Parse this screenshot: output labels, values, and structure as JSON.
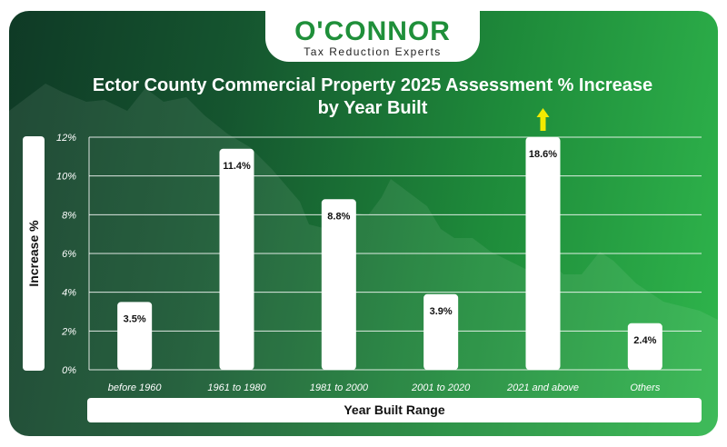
{
  "logo": {
    "name": "O'CONNOR",
    "tagline": "Tax Reduction Experts"
  },
  "colors": {
    "background_start": "#0f3a26",
    "background_end": "#2fb64c",
    "bar": "#ffffff",
    "gridline": "#ffffff",
    "arrow": "#f2ea00",
    "logo_green": "#1f8f3a"
  },
  "chart_data": {
    "type": "bar",
    "title": "Ector County Commercial Property 2025 Assessment % Increase by Year Built",
    "xlabel": "Year Built Range",
    "ylabel": "Increase %",
    "categories": [
      "before 1960",
      "1961 to 1980",
      "1981 to 2000",
      "2001 to 2020",
      "2021 and above",
      "Others"
    ],
    "values": [
      3.5,
      11.4,
      8.8,
      3.9,
      18.6,
      2.4
    ],
    "data_labels": [
      "3.5%",
      "11.4%",
      "8.8%",
      "3.9%",
      "18.6%",
      "2.4%"
    ],
    "ylim": [
      0,
      12
    ],
    "yticks": [
      "0%",
      "2%",
      "4%",
      "6%",
      "8%",
      "10%",
      "12%"
    ],
    "grid": true,
    "annotations": [
      {
        "category": "2021 and above",
        "marker": "up-arrow",
        "meaning": "value exceeds axis maximum"
      }
    ]
  }
}
